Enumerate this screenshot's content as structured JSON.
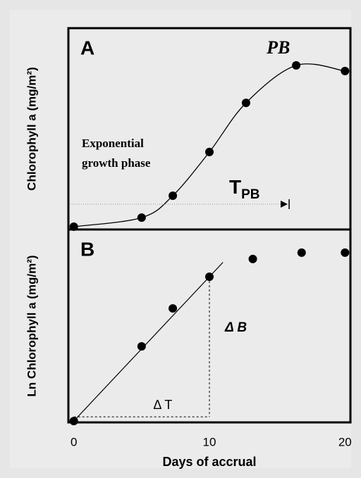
{
  "chart_data": [
    {
      "type": "scatter",
      "label": "A",
      "ylabel": "Chlorophyll a (mg/m²)",
      "x": [
        0,
        5,
        7.3,
        10,
        12.7,
        16.4,
        20
      ],
      "values": [
        1.4,
        5.9,
        16.8,
        38.5,
        62.9,
        81.5,
        78.7
      ],
      "color": "#000000",
      "xlim": [
        -0.4,
        20.4
      ],
      "ylim": [
        0,
        100
      ],
      "annotations": {
        "peak": "PB",
        "phase": [
          "Exponential",
          "growth phase"
        ],
        "tpb": {
          "text": "T",
          "subscript": "PB"
        }
      }
    },
    {
      "type": "scatter",
      "label": "B",
      "ylabel": "Ln Chlorophyll a  (mg/m²)",
      "x": [
        0,
        5,
        7.3,
        10,
        13.2,
        16.8,
        20
      ],
      "values": [
        0.7,
        39.4,
        59.1,
        75.5,
        84.7,
        88.0,
        88.0
      ],
      "color": "#000000",
      "xlim": [
        -0.4,
        20.4
      ],
      "ylim": [
        0,
        100
      ],
      "xticks": [
        0,
        10,
        20
      ],
      "xlabel": "Days of accrual",
      "annotations": {
        "dB": "Δ B",
        "dT": "Δ T"
      }
    }
  ]
}
